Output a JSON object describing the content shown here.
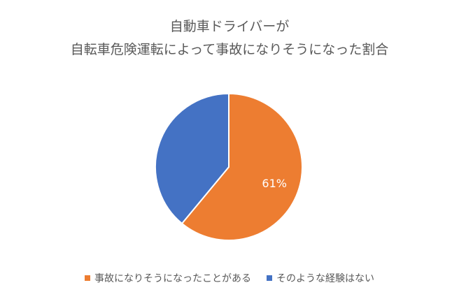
{
  "chart_data": {
    "type": "pie",
    "title_lines": [
      "自動車ドライバーが",
      "自転車危険運転によって事故になりそうになった割合"
    ],
    "categories": [
      "事故になりそうになったことがある",
      "そのような経験はない"
    ],
    "values": [
      61,
      39
    ],
    "data_labels": [
      "61%",
      ""
    ],
    "colors": [
      "#ED7D31",
      "#4472C4"
    ],
    "legend_position": "bottom"
  }
}
